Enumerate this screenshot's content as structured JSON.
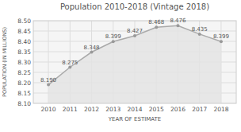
{
  "chart_data": {
    "type": "line",
    "title": "Population 2010-2018 (Vintage 2018)",
    "x_label": "YEAR OF ESTIMATE",
    "y_label": "POPULATION (IN MILLIONS)",
    "x": [
      2010,
      2011,
      2012,
      2013,
      2014,
      2015,
      2016,
      2017,
      2018
    ],
    "values": [
      8.19,
      8.275,
      8.348,
      8.399,
      8.427,
      8.468,
      8.476,
      8.435,
      8.399
    ],
    "value_labels": [
      "8.190",
      "8.275",
      "8.348",
      "8.399",
      "8.427",
      "8.468",
      "8.476",
      "8.435",
      "8.399"
    ],
    "data_labels": true,
    "color": "#aaaaaa",
    "marker": "circle",
    "grid": true,
    "xlim": [
      2009.3,
      2018.7
    ],
    "xticks": [
      2010,
      2011,
      2012,
      2013,
      2014,
      2015,
      2016,
      2017,
      2018
    ],
    "ylim": [
      8.1,
      8.5
    ],
    "yticks": [
      {
        "value": 8.1,
        "label": "8.10"
      },
      {
        "value": 8.15,
        "label": "8.15"
      },
      {
        "value": 8.2,
        "label": "8.20"
      },
      {
        "value": 8.25,
        "label": "8.25"
      },
      {
        "value": 8.3,
        "label": "8.30"
      },
      {
        "value": 8.35,
        "label": "8.35"
      },
      {
        "value": 8.4,
        "label": "8.40"
      },
      {
        "value": 8.45,
        "label": "8.45"
      },
      {
        "value": 8.5,
        "label": "8.50"
      }
    ]
  }
}
